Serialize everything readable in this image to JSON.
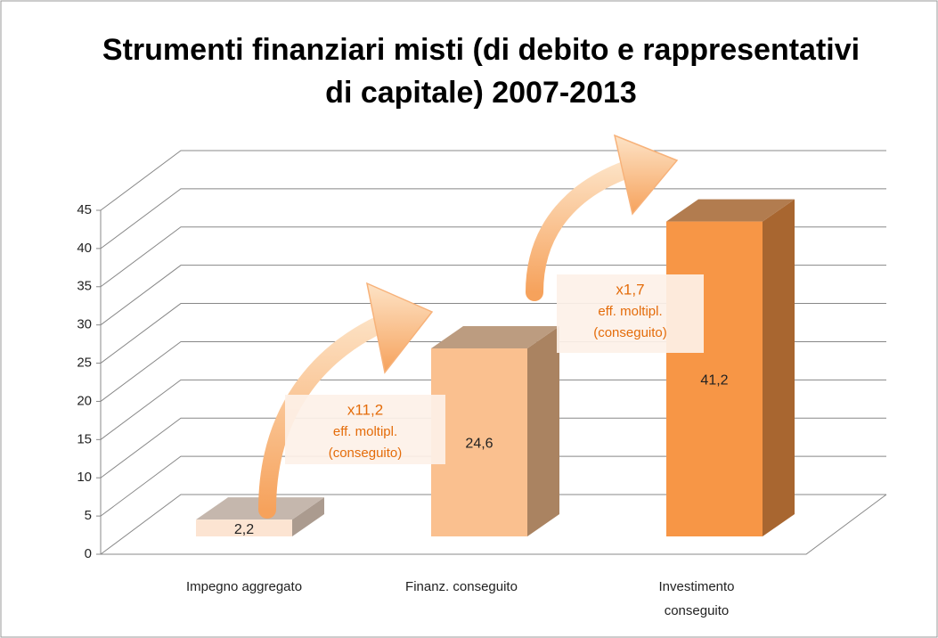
{
  "chart_data": {
    "type": "bar3d",
    "title": "Strumenti finanziari misti (di debito e rappresentativi di capitale) 2007-2013",
    "categories": [
      "Impegno aggregato",
      "Finanz. conseguito",
      "Investimento conseguito"
    ],
    "values": [
      2.2,
      24.6,
      41.2
    ],
    "value_labels": [
      "2,2",
      "24,6",
      "41,2"
    ],
    "colors": [
      "#fce4d2",
      "#fac08f",
      "#f79646"
    ],
    "ylim": [
      0,
      45
    ],
    "yticks": [
      0,
      5,
      10,
      15,
      20,
      25,
      30,
      35,
      40,
      45
    ],
    "grid": true,
    "annotations": [
      {
        "lines": [
          "x11,2",
          "eff. moltipl.",
          "(conseguito)"
        ]
      },
      {
        "lines": [
          "x1,7",
          "eff. moltipl.",
          "(conseguito)"
        ]
      }
    ]
  }
}
